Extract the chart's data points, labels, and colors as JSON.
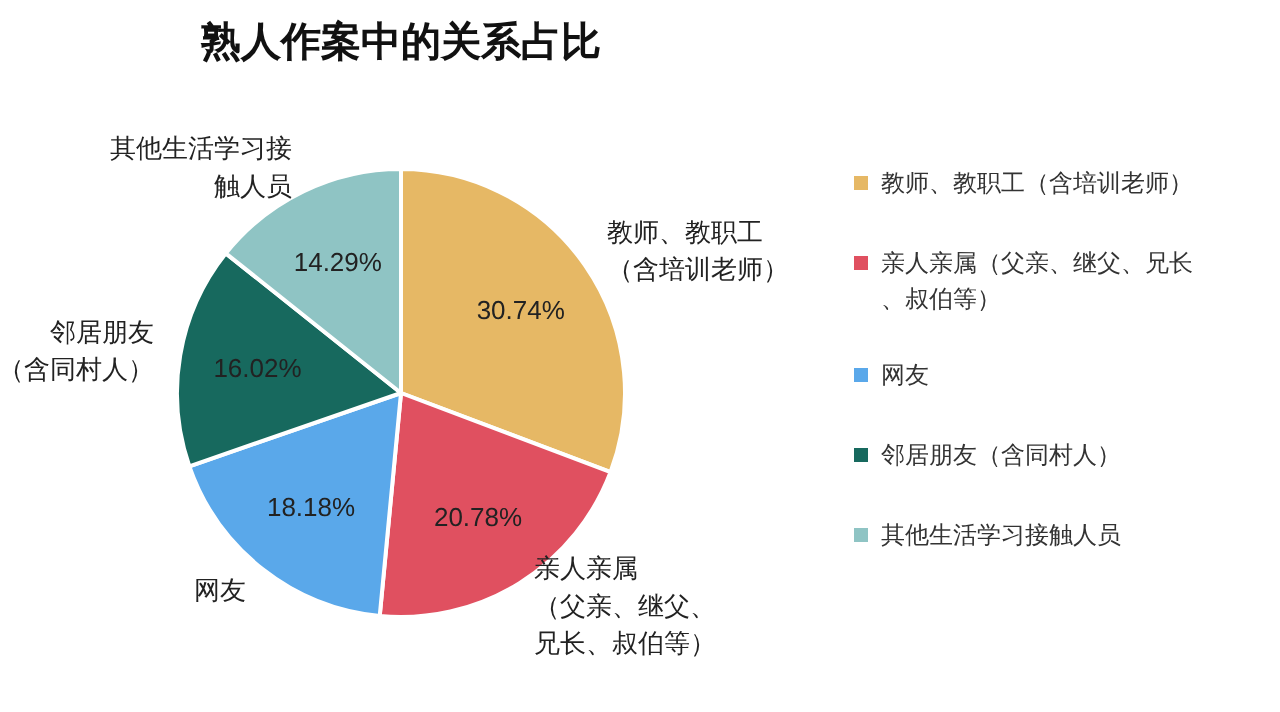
{
  "chart_data": {
    "type": "pie",
    "title": "熟人作案中的关系占比",
    "categories": [
      "教师、教职工（含培训老师）",
      "亲人亲属（父亲、继父、兄长、叔伯等）",
      "网友",
      "邻居朋友（含同村人）",
      "其他生活学习接触人员"
    ],
    "values": [
      30.74,
      20.78,
      18.18,
      16.02,
      14.29
    ],
    "colors": [
      "#e6b865",
      "#e05060",
      "#5aa8ea",
      "#17695e",
      "#8fc4c4"
    ],
    "value_labels": [
      "30.74%",
      "20.78%",
      "18.18%",
      "16.02%",
      "14.29%"
    ],
    "legend": "right"
  }
}
